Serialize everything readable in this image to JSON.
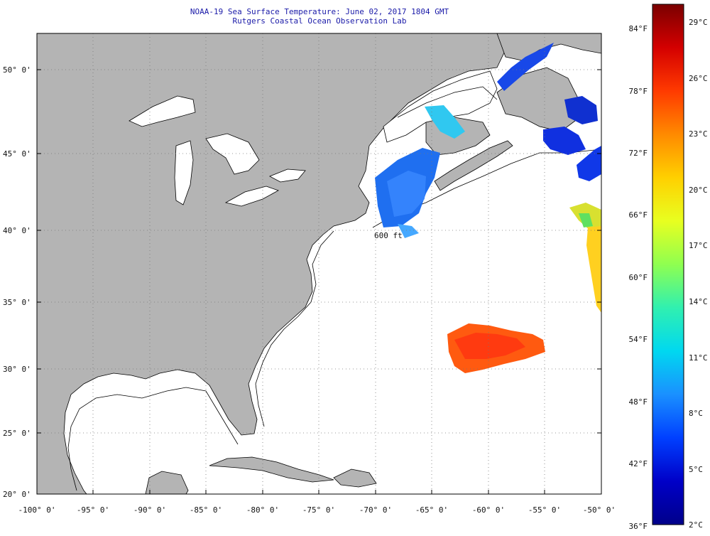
{
  "header": {
    "title": "NOAA-19 Sea Surface Temperature:  June 02, 2017 1804 GMT",
    "subtitle": "Rutgers Coastal Ocean Observation Lab"
  },
  "map": {
    "lat_labels": [
      "50° 0'",
      "45° 0'",
      "40° 0'",
      "35° 0'",
      "30° 0'",
      "25° 0'",
      "20° 0'"
    ],
    "lon_labels": [
      "-100° 0'",
      "-95° 0'",
      "-90° 0'",
      "-85° 0'",
      "-80° 0'",
      "-75° 0'",
      "-70° 0'",
      "-65° 0'",
      "-60° 0'",
      "-55° 0'",
      "-50° 0'"
    ],
    "isobath_label": "600 ft",
    "colors": {
      "land": "#b4b4b4",
      "ocean": "#ffffff",
      "grid": "#777777"
    }
  },
  "colorbar": {
    "f_labels": [
      "84°F",
      "78°F",
      "72°F",
      "66°F",
      "60°F",
      "54°F",
      "48°F",
      "42°F",
      "36°F"
    ],
    "c_labels": [
      "29°C",
      "26°C",
      "23°C",
      "20°C",
      "17°C",
      "14°C",
      "11°C",
      "8°C",
      "5°C",
      "2°C"
    ],
    "gradient": [
      "#7a0000",
      "#d40000",
      "#ff3a00",
      "#ff8a00",
      "#ffd000",
      "#e8ff20",
      "#8fff50",
      "#30f0b0",
      "#00d8f0",
      "#1a90ff",
      "#0040ff",
      "#0000c8",
      "#00008a"
    ]
  }
}
